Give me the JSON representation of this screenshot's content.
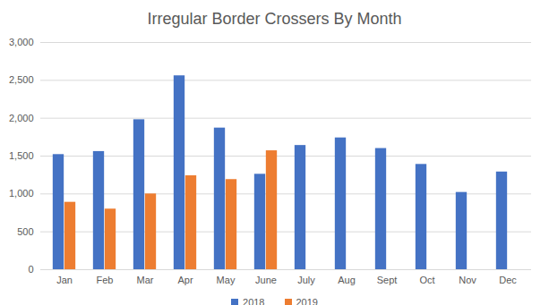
{
  "chart_data": {
    "type": "bar",
    "title": "Irregular Border Crossers By Month",
    "categories": [
      "Jan",
      "Feb",
      "Mar",
      "Apr",
      "May",
      "June",
      "July",
      "Aug",
      "Sept",
      "Oct",
      "Nov",
      "Dec"
    ],
    "series": [
      {
        "name": "2018",
        "color": "#4472c4",
        "values": [
          1520,
          1560,
          1980,
          2560,
          1870,
          1260,
          1640,
          1740,
          1600,
          1390,
          1020,
          1290
        ]
      },
      {
        "name": "2019",
        "color": "#ed7d31",
        "values": [
          890,
          800,
          1000,
          1240,
          1190,
          1570,
          null,
          null,
          null,
          null,
          null,
          null
        ]
      }
    ],
    "ylim": [
      0,
      3000
    ],
    "yticks": [
      0,
      500,
      {
        "value": 1000,
        "label": "1,000"
      },
      {
        "value": 1500,
        "label": "1,500"
      },
      {
        "value": 2000,
        "label": "2,000"
      },
      {
        "value": 2500,
        "label": "2,500"
      },
      {
        "value": 3000,
        "label": "3,000"
      }
    ],
    "grid": true,
    "legend": "bottom"
  }
}
